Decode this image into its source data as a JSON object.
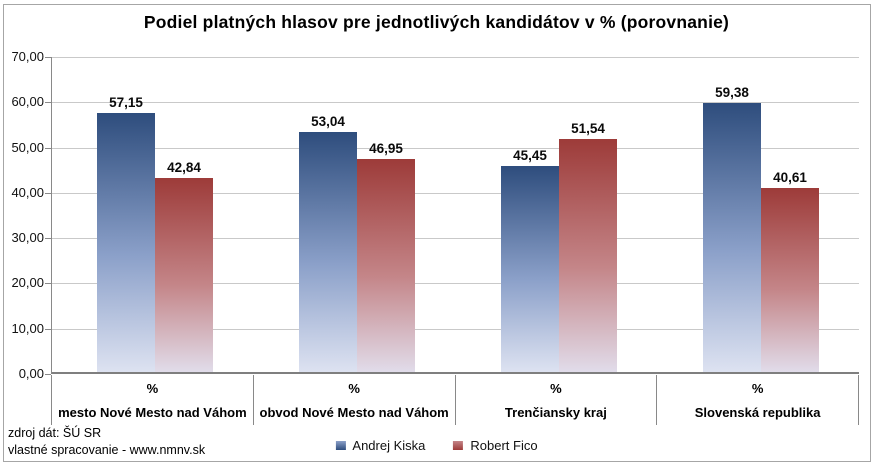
{
  "title": "Podiel platných hlasov pre jednotlivých kandidátov v % (porovnanie)",
  "source_lines": {
    "line1": "zdroj dát: ŠÚ SR",
    "line2": "vlastné spracovanie - www.nmnv.sk"
  },
  "colors": {
    "kiska_top": "#2e4d7d",
    "kiska_mid": "#8ba0c9",
    "kiska_bottom": "#dde2f1",
    "fico_top": "#9d3b39",
    "fico_mid": "#c48588",
    "fico_bottom": "#e1dcea",
    "gridline": "#c9c9c9",
    "axis": "#898989"
  },
  "chart_data": {
    "type": "bar",
    "title": "Podiel platných hlasov pre jednotlivých kandidátov v % (porovnanie)",
    "categories": [
      "mesto Nové Mesto nad Váhom",
      "obvod Nové Mesto nad Váhom",
      "Trenčiansky kraj",
      "Slovenská republika"
    ],
    "category_unit_label": "%",
    "series": [
      {
        "name": "Andrej Kiska",
        "values": [
          57.15,
          53.04,
          45.45,
          59.38
        ],
        "labels": [
          "57,15",
          "53,04",
          "45,45",
          "59,38"
        ],
        "color_top": "#2e4d7d",
        "color_mid": "#8ba0c9",
        "color_bottom": "#dde2f1"
      },
      {
        "name": "Robert Fico",
        "values": [
          42.84,
          46.95,
          51.54,
          40.61
        ],
        "labels": [
          "42,84",
          "46,95",
          "51,54",
          "40,61"
        ],
        "color_top": "#9d3b39",
        "color_mid": "#c48588",
        "color_bottom": "#e1dcea"
      }
    ],
    "xlabel": "",
    "ylabel": "",
    "ylim": [
      0,
      70
    ],
    "ytick_step": 10,
    "ytick_labels": [
      "0,00",
      "10,00",
      "20,00",
      "30,00",
      "40,00",
      "50,00",
      "60,00",
      "70,00"
    ],
    "grid": true,
    "legend_position": "bottom"
  }
}
